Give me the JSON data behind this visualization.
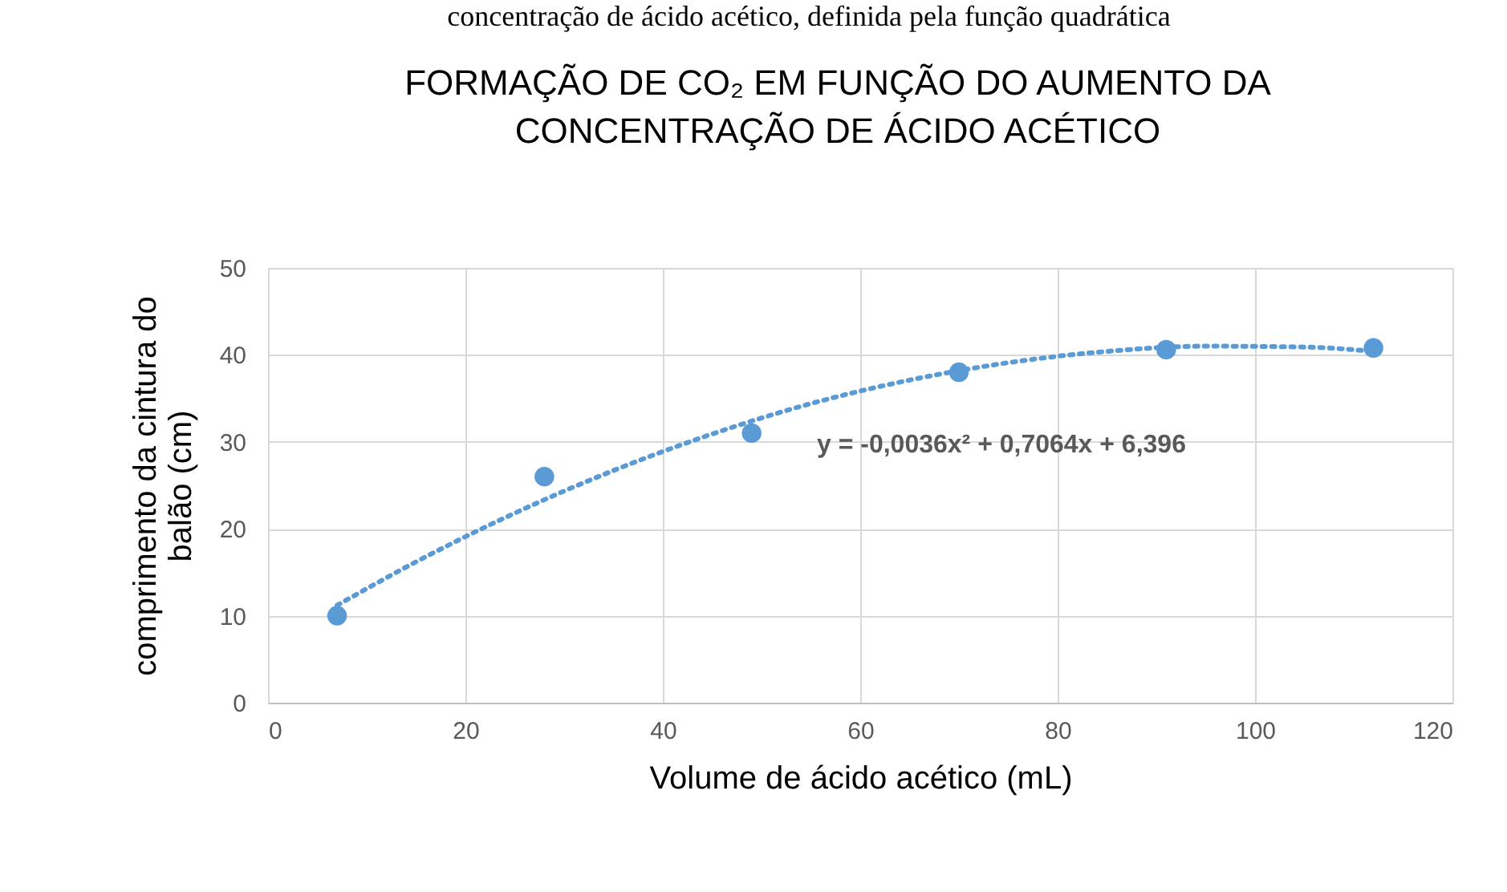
{
  "chart_data": {
    "type": "scatter",
    "title": "FORMAÇÃO DE CO₂ EM FUNÇÃO DO AUMENTO DA CONCENTRAÇÃO DE ÁCIDO ACÉTICO",
    "xlabel": "Volume de ácido acético (mL)",
    "ylabel": "comprimento da cintura do balão (cm)",
    "x": [
      7,
      28,
      49,
      70,
      91,
      112
    ],
    "series": [
      {
        "color": "#5b9bd5",
        "marker": "circle",
        "values": [
          10,
          26,
          31,
          38,
          40.6,
          40.8
        ]
      },
      {
        "type": "line",
        "color": "#5b9bd5",
        "line_style": "dotted",
        "marker": "none",
        "x": [
          7,
          15,
          25,
          35,
          45,
          55,
          65,
          75,
          85,
          95,
          105,
          112
        ],
        "values": [
          11.2,
          16.2,
          21.8,
          26.7,
          30.9,
          34.4,
          37.1,
          39.1,
          40.4,
          41.0,
          40.9,
          40.4
        ]
      }
    ],
    "xlim": [
      0,
      120
    ],
    "xticks": [
      0,
      20,
      40,
      60,
      80,
      100,
      120
    ],
    "ylim": [
      0,
      50
    ],
    "yticks": [
      0,
      10,
      20,
      30,
      40,
      50
    ],
    "grid": true,
    "annotations": [
      "concentração de ácido acético, definida pela função quadrática",
      "y = -0,0036x² + 0,7064x + 6,396"
    ]
  }
}
